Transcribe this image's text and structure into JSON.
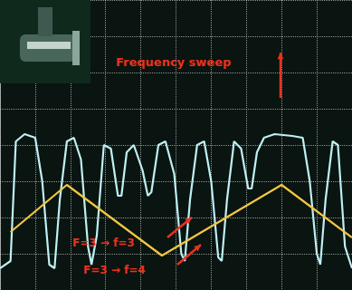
{
  "chart_data": {
    "type": "line",
    "xlim": [
      0,
      10
    ],
    "xticks": [
      0,
      1,
      2,
      3,
      4,
      5,
      6,
      7,
      8,
      9,
      10
    ],
    "ylim": [
      0,
      8
    ],
    "yticks": [
      0,
      1,
      2,
      3,
      4,
      5,
      6,
      7,
      8
    ],
    "grid": true,
    "tick_labels": false,
    "annotations": [
      "Frequency sweep",
      "F=3 → f=3",
      "F=3 → f=4"
    ],
    "series": [
      {
        "color": "#bff0f5",
        "x": [
          0.0,
          0.3,
          0.45,
          0.7,
          1.0,
          1.2,
          1.4,
          1.55,
          1.7,
          1.9,
          2.1,
          2.3,
          2.5,
          2.6,
          2.75,
          2.95,
          3.15,
          3.35,
          3.45,
          3.6,
          3.8,
          4.05,
          4.2,
          4.3,
          4.5,
          4.7,
          4.95,
          5.15,
          5.25,
          5.4,
          5.6,
          5.8,
          6.0,
          6.2,
          6.3,
          6.45,
          6.65,
          6.85,
          7.05,
          7.15,
          7.3,
          7.5,
          7.8,
          8.3,
          8.6,
          8.8,
          9.0,
          9.1,
          9.25,
          9.45,
          9.6,
          9.8,
          10.0
        ],
        "values": [
          0.6,
          0.8,
          4.1,
          4.3,
          4.2,
          3.0,
          0.7,
          0.6,
          2.5,
          4.1,
          4.2,
          3.6,
          1.2,
          0.7,
          1.5,
          4.0,
          3.9,
          2.6,
          2.6,
          3.8,
          4.0,
          3.3,
          2.6,
          2.7,
          4.0,
          4.1,
          3.2,
          1.0,
          0.8,
          2.5,
          4.0,
          4.1,
          3.0,
          0.9,
          0.8,
          2.5,
          4.1,
          3.9,
          2.8,
          2.8,
          3.8,
          4.2,
          4.3,
          4.25,
          4.2,
          3.0,
          1.0,
          0.7,
          2.5,
          4.1,
          4.0,
          1.2,
          0.6
        ]
      },
      {
        "color": "#f2c744",
        "x": [
          0.3,
          1.9,
          4.6,
          8.0,
          10.0
        ],
        "values": [
          1.6,
          2.9,
          0.95,
          2.9,
          1.45
        ]
      }
    ]
  }
}
